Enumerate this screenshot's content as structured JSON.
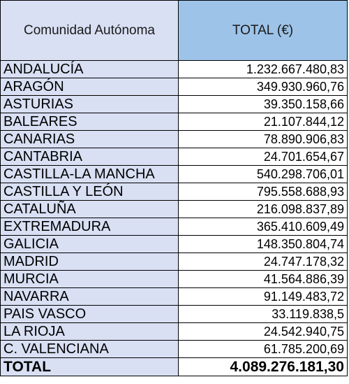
{
  "header": {
    "name_label": "Comunidad Autónoma",
    "total_label": "TOTAL (€)"
  },
  "rows": [
    {
      "name": "ANDALUCÍA",
      "value": "1.232.667.480,83"
    },
    {
      "name": "ARAGÓN",
      "value": "349.930.960,76"
    },
    {
      "name": "ASTURIAS",
      "value": "39.350.158,66"
    },
    {
      "name": "BALEARES",
      "value": "21.107.844,12"
    },
    {
      "name": "CANARIAS",
      "value": "78.890.906,83"
    },
    {
      "name": "CANTABRIA",
      "value": "24.701.654,67"
    },
    {
      "name": "CASTILLA-LA MANCHA",
      "value": "540.298.706,01"
    },
    {
      "name": "CASTILLA Y LEÓN",
      "value": "795.558.688,93"
    },
    {
      "name": "CATALUÑA",
      "value": "216.098.837,89"
    },
    {
      "name": "EXTREMADURA",
      "value": "365.410.609,49"
    },
    {
      "name": "GALICIA",
      "value": "148.350.804,74"
    },
    {
      "name": "MADRID",
      "value": "24.747.178,32"
    },
    {
      "name": "MURCIA",
      "value": "41.564.886,39"
    },
    {
      "name": "NAVARRA",
      "value": "91.149.483,72"
    },
    {
      "name": "PAIS VASCO",
      "value": "33.119.838,5"
    },
    {
      "name": "LA RIOJA",
      "value": "24.542.940,75"
    },
    {
      "name": "C. VALENCIANA",
      "value": "61.785.200,69"
    }
  ],
  "footer": {
    "name": "TOTAL",
    "value": "4.089.276.181,30"
  },
  "colors": {
    "name_column_bg": "#d9e0f4",
    "total_header_bg": "#9dc3e8",
    "value_bg": "#ffffff",
    "border": "#000000"
  }
}
